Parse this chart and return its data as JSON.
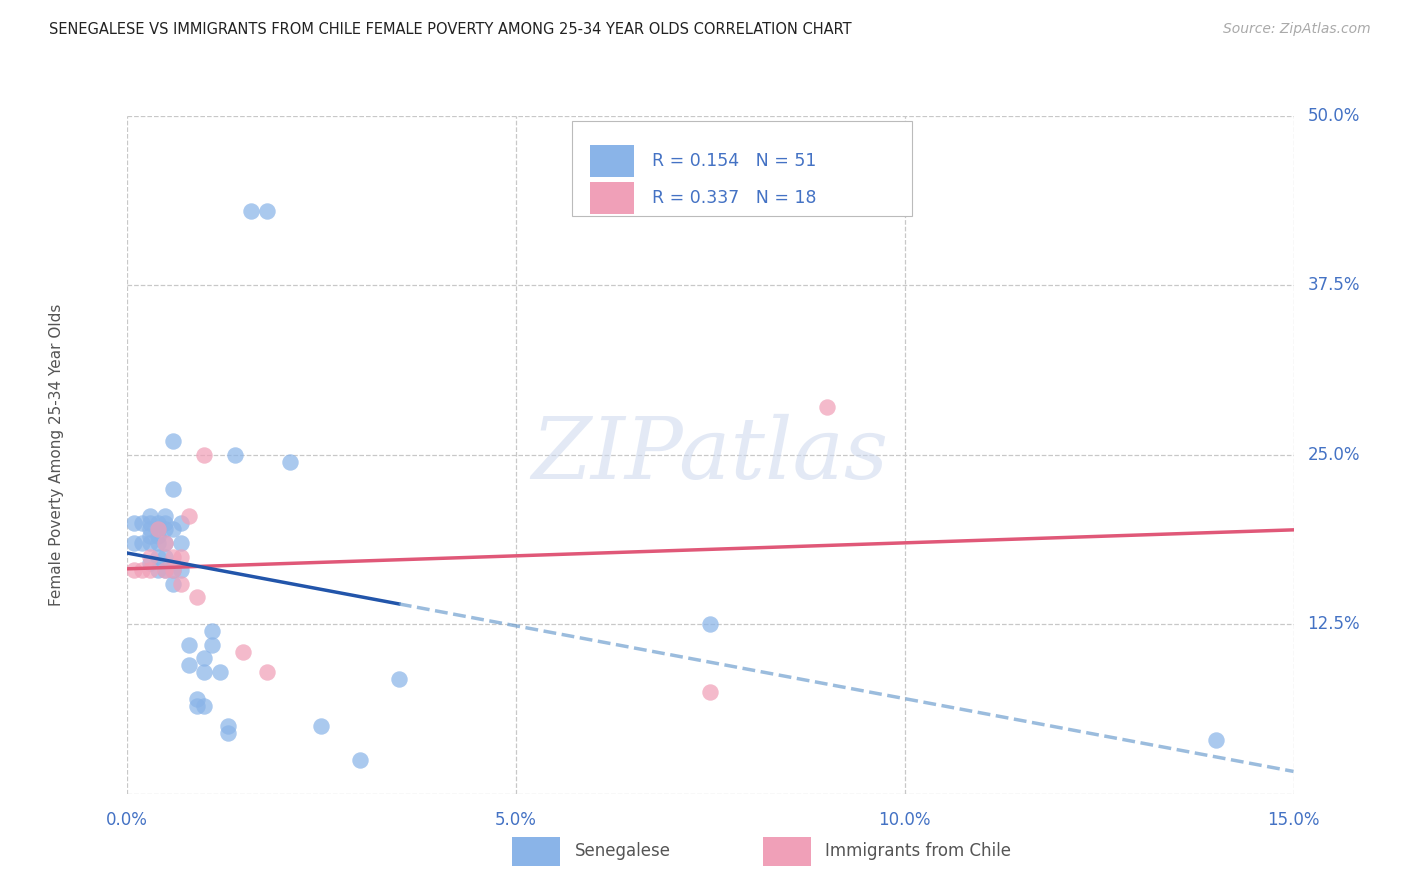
{
  "title": "SENEGALESE VS IMMIGRANTS FROM CHILE FEMALE POVERTY AMONG 25-34 YEAR OLDS CORRELATION CHART",
  "source": "Source: ZipAtlas.com",
  "ylabel": "Female Poverty Among 25-34 Year Olds",
  "xlim": [
    0.0,
    0.15
  ],
  "ylim": [
    0.0,
    0.5
  ],
  "xticks": [
    0.0,
    0.05,
    0.1,
    0.15
  ],
  "xticklabels": [
    "0.0%",
    "5.0%",
    "10.0%",
    "15.0%"
  ],
  "yticks": [
    0.0,
    0.125,
    0.25,
    0.375,
    0.5
  ],
  "yticklabels_right": [
    "",
    "12.5%",
    "25.0%",
    "37.5%",
    "50.0%"
  ],
  "background_color": "#ffffff",
  "grid_color": "#c8c8c8",
  "blue_scatter_color": "#8ab4e8",
  "pink_scatter_color": "#f0a0b8",
  "blue_line_color": "#2255aa",
  "pink_line_color": "#e05878",
  "blue_dash_color": "#6699cc",
  "R1": 0.154,
  "N1": 51,
  "R2": 0.337,
  "N2": 18,
  "blue_x": [
    0.001,
    0.001,
    0.002,
    0.002,
    0.003,
    0.003,
    0.003,
    0.003,
    0.003,
    0.003,
    0.004,
    0.004,
    0.004,
    0.004,
    0.004,
    0.004,
    0.005,
    0.005,
    0.005,
    0.005,
    0.005,
    0.005,
    0.006,
    0.006,
    0.006,
    0.006,
    0.006,
    0.007,
    0.007,
    0.007,
    0.008,
    0.008,
    0.009,
    0.009,
    0.01,
    0.01,
    0.01,
    0.011,
    0.011,
    0.012,
    0.013,
    0.013,
    0.014,
    0.016,
    0.018,
    0.021,
    0.025,
    0.03,
    0.035,
    0.075,
    0.14
  ],
  "blue_y": [
    0.2,
    0.185,
    0.2,
    0.185,
    0.205,
    0.2,
    0.195,
    0.19,
    0.185,
    0.17,
    0.2,
    0.195,
    0.19,
    0.185,
    0.175,
    0.165,
    0.205,
    0.2,
    0.195,
    0.185,
    0.175,
    0.165,
    0.26,
    0.225,
    0.195,
    0.165,
    0.155,
    0.2,
    0.185,
    0.165,
    0.11,
    0.095,
    0.07,
    0.065,
    0.1,
    0.09,
    0.065,
    0.12,
    0.11,
    0.09,
    0.05,
    0.045,
    0.25,
    0.43,
    0.43,
    0.245,
    0.05,
    0.025,
    0.085,
    0.125,
    0.04
  ],
  "pink_x": [
    0.001,
    0.002,
    0.003,
    0.003,
    0.004,
    0.005,
    0.005,
    0.006,
    0.006,
    0.007,
    0.007,
    0.008,
    0.009,
    0.01,
    0.015,
    0.018,
    0.075,
    0.09
  ],
  "pink_y": [
    0.165,
    0.165,
    0.175,
    0.165,
    0.195,
    0.185,
    0.165,
    0.175,
    0.165,
    0.175,
    0.155,
    0.205,
    0.145,
    0.25,
    0.105,
    0.09,
    0.075,
    0.285
  ],
  "senegalese_label": "Senegalese",
  "chile_label": "Immigrants from Chile",
  "tick_color": "#4472c4",
  "label_color": "#555555",
  "title_color": "#222222",
  "watermark_color": "#ccd8ee",
  "watermark_text": "ZIPatlas"
}
